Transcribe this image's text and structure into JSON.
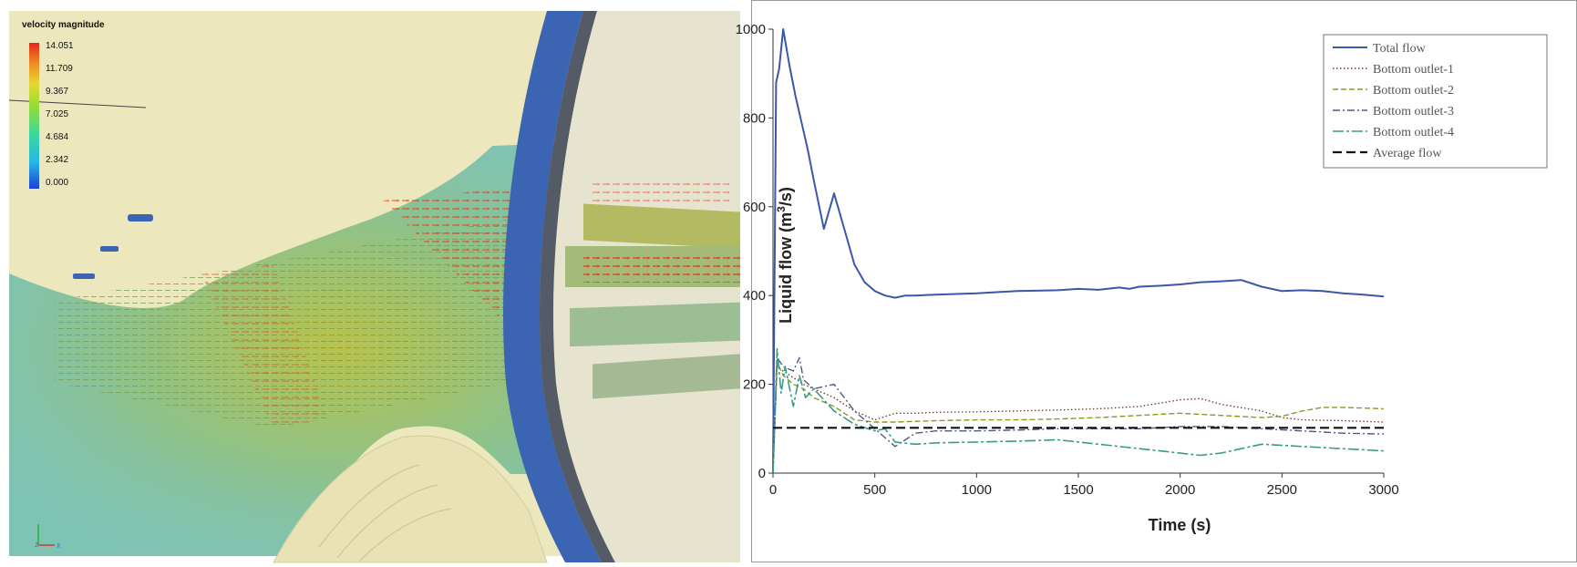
{
  "cfd": {
    "legend_title": "velocity magnitude",
    "legend_ticks": [
      "14.051",
      "11.709",
      "9.367",
      "7.025",
      "4.684",
      "2.342",
      "0.000"
    ],
    "colors": {
      "sand": "#ece7bd",
      "water": "#7fc3b4",
      "wall": "#3b64b2",
      "vector": "#e8401c"
    },
    "axes_triad": {
      "z_label": "z",
      "x_label": "x"
    }
  },
  "chart_data": {
    "type": "line",
    "xlabel": "Time (s)",
    "ylabel_prefix": "Liquid flow (m",
    "ylabel_sup": "3",
    "ylabel_suffix": "/s)",
    "xlim": [
      0,
      3000
    ],
    "ylim": [
      0,
      1000
    ],
    "xticks": [
      "0",
      "500",
      "1000",
      "1500",
      "2000",
      "2500",
      "3000"
    ],
    "yticks": [
      "0",
      "200",
      "400",
      "600",
      "800",
      "1000"
    ],
    "grid": false,
    "legend_position": "top-right",
    "series": [
      {
        "name": "Total flow",
        "color": "#3a57a8",
        "dash": "solid",
        "x": [
          0,
          15,
          30,
          50,
          80,
          110,
          140,
          170,
          200,
          250,
          300,
          350,
          400,
          450,
          500,
          550,
          600,
          650,
          700,
          800,
          1000,
          1200,
          1400,
          1500,
          1600,
          1700,
          1750,
          1800,
          1900,
          2000,
          2100,
          2200,
          2300,
          2400,
          2500,
          2600,
          2700,
          2800,
          2900,
          3000
        ],
        "y": [
          0,
          880,
          910,
          1000,
          920,
          850,
          790,
          730,
          660,
          550,
          630,
          550,
          470,
          430,
          410,
          400,
          395,
          400,
          400,
          402,
          405,
          410,
          412,
          415,
          413,
          418,
          415,
          420,
          422,
          425,
          430,
          432,
          435,
          420,
          410,
          412,
          410,
          405,
          402,
          398
        ]
      },
      {
        "name": "Bottom outlet-1",
        "color": "#7a3a2a",
        "dash": "dotted",
        "x": [
          0,
          20,
          50,
          100,
          150,
          200,
          300,
          400,
          500,
          600,
          700,
          800,
          1000,
          1200,
          1400,
          1600,
          1800,
          2000,
          2100,
          2200,
          2400,
          2500,
          2600,
          2800,
          3000
        ],
        "y": [
          0,
          240,
          230,
          215,
          200,
          190,
          170,
          140,
          120,
          135,
          135,
          137,
          138,
          140,
          142,
          145,
          150,
          165,
          168,
          155,
          140,
          125,
          120,
          118,
          115
        ]
      },
      {
        "name": "Bottom outlet-2",
        "color": "#8a9a22",
        "dash": "dashed",
        "x": [
          0,
          20,
          50,
          100,
          150,
          200,
          300,
          400,
          500,
          600,
          800,
          1000,
          1200,
          1400,
          1600,
          1800,
          2000,
          2200,
          2400,
          2500,
          2600,
          2700,
          2800,
          3000
        ],
        "y": [
          0,
          250,
          220,
          200,
          190,
          170,
          150,
          120,
          115,
          115,
          118,
          120,
          120,
          122,
          125,
          130,
          135,
          130,
          125,
          128,
          140,
          148,
          148,
          145
        ]
      },
      {
        "name": "Bottom outlet-3",
        "color": "#4a5a8a",
        "dash": "dashdot",
        "x": [
          0,
          20,
          50,
          100,
          130,
          150,
          200,
          300,
          400,
          500,
          550,
          600,
          700,
          800,
          1000,
          1200,
          1400,
          1600,
          1800,
          2000,
          2200,
          2400,
          2600,
          2800,
          3000
        ],
        "y": [
          0,
          260,
          240,
          230,
          260,
          210,
          190,
          200,
          140,
          100,
          80,
          60,
          90,
          95,
          95,
          97,
          100,
          100,
          100,
          105,
          105,
          100,
          95,
          90,
          88
        ]
      },
      {
        "name": "Bottom outlet-4",
        "color": "#3a9a8a",
        "dash": "longdash",
        "x": [
          0,
          20,
          40,
          60,
          100,
          130,
          160,
          200,
          300,
          400,
          500,
          550,
          600,
          700,
          800,
          1000,
          1200,
          1400,
          1600,
          1800,
          1900,
          2000,
          2100,
          2200,
          2300,
          2400,
          2600,
          2800,
          3000
        ],
        "y": [
          0,
          280,
          180,
          240,
          150,
          220,
          170,
          190,
          140,
          110,
          95,
          100,
          70,
          65,
          68,
          70,
          72,
          75,
          65,
          55,
          50,
          45,
          40,
          45,
          55,
          65,
          60,
          55,
          50
        ]
      },
      {
        "name": "Average flow",
        "color": "#111111",
        "dash": "heavydash",
        "x": [
          0,
          3000
        ],
        "y": [
          102,
          102
        ]
      }
    ]
  }
}
